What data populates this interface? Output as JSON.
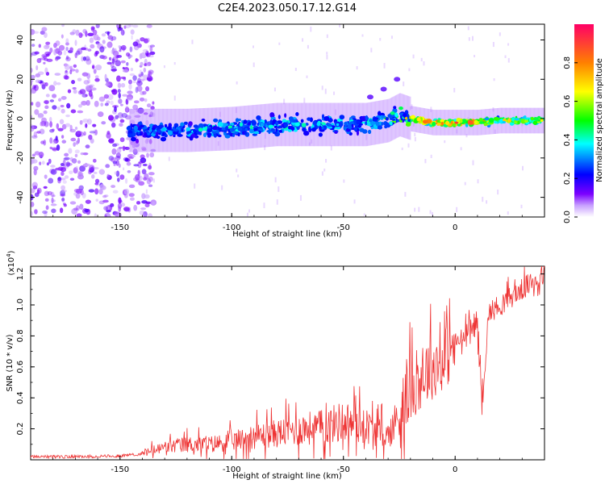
{
  "title": "C2E4.2023.050.17.12.G14",
  "chart_data": [
    {
      "type": "heatmap",
      "title": "C2E4.2023.050.17.12.G14",
      "xlabel": "Height of straight line (km)",
      "ylabel": "Frequency (Hz)",
      "xlim": [
        -190,
        40
      ],
      "ylim": [
        -50,
        48
      ],
      "x_ticks": [
        -150,
        -100,
        -50,
        0
      ],
      "x_tick_labels": [
        "-150",
        "-100",
        "-50",
        "0"
      ],
      "y_ticks": [
        -40,
        -20,
        0,
        20,
        40
      ],
      "y_tick_labels": [
        "-40",
        "-20",
        "0",
        "20",
        "40"
      ],
      "colorbar": {
        "label": "Normalized spectral amplitude",
        "range": [
          0,
          1
        ],
        "ticks": [
          0.0,
          0.2,
          0.4,
          0.6,
          0.8
        ],
        "tick_labels": [
          "0.0",
          "0.2",
          "0.4",
          "0.6",
          "0.8"
        ],
        "colors": [
          "#ffffff",
          "#7b00ff",
          "#0000ff",
          "#00ffff",
          "#00ff00",
          "#ffff00",
          "#ff8000",
          "#ff0033"
        ]
      },
      "ridge": {
        "description_points_x": [
          -145,
          -120,
          -100,
          -80,
          -60,
          -40,
          -30,
          -25,
          -20,
          -10,
          0,
          10,
          20,
          40
        ],
        "center_freq": [
          -6,
          -6,
          -5,
          -3,
          -3,
          -3,
          -1,
          2,
          0,
          -2,
          -2,
          -2,
          -1,
          -1
        ],
        "peak_amplitude": [
          0.35,
          0.4,
          0.45,
          0.45,
          0.45,
          0.45,
          0.6,
          0.7,
          0.8,
          0.95,
          0.9,
          0.9,
          0.7,
          0.7
        ]
      },
      "noise_region_x": [
        -190,
        -140
      ],
      "spur_points": [
        {
          "x": -26,
          "y": 20
        },
        {
          "x": -32,
          "y": 15
        },
        {
          "x": -38,
          "y": 11
        }
      ]
    },
    {
      "type": "line",
      "xlabel": "Height of straight line (km)",
      "ylabel": "SNR (10 * v/v)",
      "y_scale_label": "(x10",
      "y_scale_exponent": "4",
      "y_scale_suffix": ")",
      "xlim": [
        -190,
        40
      ],
      "ylim": [
        0,
        1.25
      ],
      "x_ticks": [
        -150,
        -100,
        -50,
        0
      ],
      "x_tick_labels": [
        "-150",
        "-100",
        "-50",
        "0"
      ],
      "y_ticks": [
        0.2,
        0.4,
        0.6,
        0.8,
        1.0,
        1.2
      ],
      "y_tick_labels": [
        "0.2",
        "0.4",
        "0.6",
        "0.8",
        "1.0",
        "1.2"
      ],
      "series": [
        {
          "name": "SNR",
          "color": "#ee3333",
          "x": [
            -190,
            -170,
            -150,
            -140,
            -130,
            -120,
            -110,
            -100,
            -90,
            -80,
            -70,
            -60,
            -50,
            -40,
            -30,
            -25,
            -20,
            -15,
            -10,
            -5,
            0,
            5,
            10,
            12,
            15,
            20,
            30,
            40
          ],
          "y": [
            0.02,
            0.02,
            0.025,
            0.04,
            0.08,
            0.1,
            0.1,
            0.12,
            0.15,
            0.17,
            0.2,
            0.21,
            0.25,
            0.22,
            0.15,
            0.3,
            0.45,
            0.55,
            0.6,
            0.65,
            0.75,
            0.8,
            0.9,
            0.35,
            0.95,
            1.0,
            1.1,
            1.2
          ]
        }
      ]
    }
  ]
}
